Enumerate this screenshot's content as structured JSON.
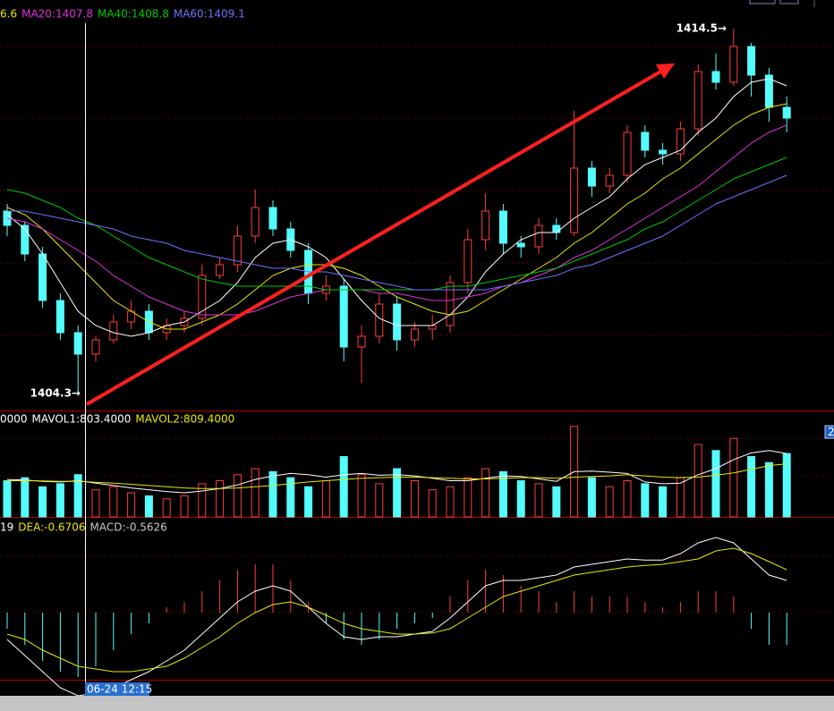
{
  "chart_data": [
    {
      "type": "candlestick",
      "open": [
        1409.4,
        1409.0,
        1408.2,
        1406.9,
        1406.0,
        1405.4,
        1405.8,
        1406.3,
        1406.6,
        1406.0,
        1406.2,
        1406.4,
        1407.6,
        1407.9,
        1408.7,
        1409.5,
        1408.9,
        1408.3,
        1407.1,
        1407.3,
        1405.6,
        1405.9,
        1406.8,
        1405.8,
        1406.1,
        1406.2,
        1407.4,
        1408.6,
        1409.4,
        1408.5,
        1408.4,
        1409.0,
        1408.8,
        1410.6,
        1410.1,
        1410.4,
        1411.6,
        1411.1,
        1411.0,
        1411.7,
        1413.3,
        1413.0,
        1414.0,
        1413.2,
        1412.3
      ],
      "high": [
        1409.6,
        1409.1,
        1408.4,
        1407.1,
        1406.2,
        1405.9,
        1406.5,
        1406.9,
        1406.8,
        1406.4,
        1406.6,
        1407.9,
        1408.1,
        1409.0,
        1410.0,
        1409.7,
        1409.1,
        1408.5,
        1407.6,
        1407.5,
        1406.2,
        1407.1,
        1407.0,
        1406.3,
        1406.5,
        1407.6,
        1408.9,
        1409.9,
        1409.6,
        1408.7,
        1409.2,
        1409.2,
        1412.2,
        1410.8,
        1410.6,
        1411.8,
        1411.8,
        1411.3,
        1411.9,
        1413.5,
        1413.8,
        1414.5,
        1414.1,
        1413.4,
        1412.6
      ],
      "low": [
        1408.7,
        1408.0,
        1406.7,
        1405.8,
        1404.3,
        1405.2,
        1405.7,
        1406.1,
        1405.8,
        1405.8,
        1406.0,
        1406.2,
        1407.5,
        1407.7,
        1408.5,
        1408.7,
        1408.1,
        1406.8,
        1406.9,
        1405.2,
        1404.6,
        1405.7,
        1405.5,
        1405.6,
        1405.8,
        1406.0,
        1407.1,
        1408.3,
        1408.2,
        1408.1,
        1408.2,
        1408.6,
        1408.7,
        1409.8,
        1409.9,
        1410.2,
        1410.9,
        1410.7,
        1410.8,
        1411.5,
        1412.8,
        1412.9,
        1412.6,
        1411.9,
        1411.6
      ],
      "close": [
        1409.0,
        1408.2,
        1406.9,
        1406.0,
        1405.4,
        1405.8,
        1406.3,
        1406.6,
        1406.0,
        1406.2,
        1406.4,
        1407.6,
        1407.9,
        1408.7,
        1409.5,
        1408.9,
        1408.3,
        1407.1,
        1407.3,
        1405.6,
        1405.9,
        1406.8,
        1405.8,
        1406.1,
        1406.2,
        1407.4,
        1408.6,
        1409.4,
        1408.5,
        1408.4,
        1409.0,
        1408.8,
        1410.6,
        1410.1,
        1410.4,
        1411.6,
        1411.1,
        1411.0,
        1411.7,
        1413.3,
        1413.0,
        1414.0,
        1413.2,
        1412.3,
        1412.0
      ],
      "up_color": "#ff3c3c",
      "down_color": "#54fcfc",
      "ylim": [
        1403.8,
        1415.3
      ],
      "series": [
        {
          "color": "#ffffff",
          "values": [
            1409.3,
            1408.9,
            1408.2,
            1407.4,
            1406.6,
            1406.2,
            1406.0,
            1405.9,
            1406.0,
            1406.2,
            1406.3,
            1406.6,
            1406.9,
            1407.4,
            1408.1,
            1408.5,
            1408.6,
            1408.4,
            1408.1,
            1407.5,
            1406.9,
            1406.4,
            1406.2,
            1406.2,
            1406.2,
            1406.5,
            1407.0,
            1407.7,
            1408.2,
            1408.6,
            1408.8,
            1408.8,
            1409.2,
            1409.5,
            1409.8,
            1410.3,
            1410.7,
            1410.9,
            1411.1,
            1411.6,
            1412.0,
            1412.6,
            1413.0,
            1413.1,
            1412.9
          ]
        },
        {
          "name": "6.6",
          "color": "#e8e800",
          "values": [
            1409.5,
            1409.3,
            1408.9,
            1408.4,
            1407.9,
            1407.4,
            1406.9,
            1406.6,
            1406.3,
            1406.1,
            1406.1,
            1406.3,
            1406.5,
            1406.8,
            1407.2,
            1407.6,
            1407.8,
            1407.9,
            1407.9,
            1407.8,
            1407.6,
            1407.3,
            1407.0,
            1406.8,
            1406.6,
            1406.5,
            1406.6,
            1406.9,
            1407.2,
            1407.5,
            1407.8,
            1408.1,
            1408.5,
            1408.8,
            1409.2,
            1409.6,
            1409.9,
            1410.3,
            1410.6,
            1411.0,
            1411.4,
            1411.8,
            1412.1,
            1412.3,
            1412.4
          ]
        },
        {
          "name": "MA20:1407.8",
          "color": "#e030e0",
          "values": [
            1409.2,
            1409.1,
            1408.9,
            1408.6,
            1408.3,
            1408.0,
            1407.6,
            1407.3,
            1407.0,
            1406.8,
            1406.6,
            1406.5,
            1406.5,
            1406.5,
            1406.6,
            1406.8,
            1407.0,
            1407.1,
            1407.2,
            1407.2,
            1407.2,
            1407.1,
            1407.1,
            1407.0,
            1406.9,
            1406.9,
            1407.0,
            1407.1,
            1407.3,
            1407.4,
            1407.6,
            1407.8,
            1408.1,
            1408.3,
            1408.6,
            1408.9,
            1409.2,
            1409.5,
            1409.8,
            1410.1,
            1410.5,
            1410.9,
            1411.3,
            1411.6,
            1411.8
          ]
        },
        {
          "name": "MA40:1408.8",
          "color": "#00c800",
          "values": [
            1410.0,
            1409.9,
            1409.7,
            1409.5,
            1409.2,
            1409.0,
            1408.7,
            1408.4,
            1408.1,
            1407.9,
            1407.7,
            1407.5,
            1407.4,
            1407.3,
            1407.3,
            1407.3,
            1407.3,
            1407.3,
            1407.2,
            1407.2,
            1407.2,
            1407.2,
            1407.2,
            1407.2,
            1407.2,
            1407.3,
            1407.3,
            1407.4,
            1407.5,
            1407.6,
            1407.7,
            1407.8,
            1408.0,
            1408.2,
            1408.4,
            1408.6,
            1408.9,
            1409.1,
            1409.4,
            1409.7,
            1410.0,
            1410.3,
            1410.5,
            1410.7,
            1410.9
          ]
        },
        {
          "name": "MA60:1409.1",
          "color": "#7070ff",
          "values": [
            1409.4,
            1409.4,
            1409.3,
            1409.2,
            1409.1,
            1409.0,
            1408.9,
            1408.7,
            1408.6,
            1408.5,
            1408.3,
            1408.2,
            1408.1,
            1408.0,
            1407.9,
            1407.8,
            1407.8,
            1407.7,
            1407.7,
            1407.6,
            1407.5,
            1407.4,
            1407.3,
            1407.2,
            1407.2,
            1407.2,
            1407.2,
            1407.2,
            1407.3,
            1407.4,
            1407.5,
            1407.6,
            1407.8,
            1407.9,
            1408.1,
            1408.3,
            1408.5,
            1408.7,
            1409.0,
            1409.3,
            1409.6,
            1409.8,
            1410.0,
            1410.2,
            1410.4
          ]
        }
      ],
      "annotations": [
        {
          "value": 1414.5,
          "label": "1414.5→"
        },
        {
          "value": 1404.3,
          "label": "1404.3→"
        }
      ]
    },
    {
      "type": "volume",
      "label": "0000",
      "ylim": [
        0,
        1600
      ],
      "values": [
        600,
        650,
        500,
        550,
        700,
        450,
        500,
        400,
        350,
        300,
        350,
        550,
        600,
        700,
        800,
        750,
        650,
        500,
        600,
        1000,
        700,
        550,
        800,
        600,
        450,
        500,
        650,
        800,
        750,
        600,
        550,
        500,
        1500,
        650,
        500,
        600,
        550,
        500,
        650,
        1200,
        1100,
        1300,
        1000,
        900,
        1050
      ],
      "series": [
        {
          "name": "MAVOL1:803.4000",
          "color": "#ffffff",
          "values": [
            620,
            610,
            590,
            580,
            600,
            560,
            520,
            480,
            450,
            420,
            400,
            430,
            470,
            530,
            620,
            680,
            720,
            700,
            660,
            700,
            720,
            690,
            700,
            680,
            640,
            600,
            600,
            640,
            680,
            670,
            630,
            590,
            750,
            760,
            740,
            720,
            580,
            550,
            560,
            700,
            800,
            950,
            1060,
            1100,
            1050
          ]
        },
        {
          "name": "MAVOL2:809.4000",
          "color": "#e8e800",
          "values": [
            600,
            600,
            595,
            590,
            590,
            575,
            560,
            540,
            520,
            500,
            480,
            470,
            470,
            480,
            500,
            520,
            550,
            580,
            600,
            620,
            640,
            650,
            660,
            660,
            650,
            640,
            630,
            630,
            640,
            650,
            650,
            640,
            660,
            670,
            680,
            700,
            680,
            660,
            650,
            660,
            690,
            730,
            790,
            850,
            880
          ]
        }
      ]
    },
    {
      "type": "macd",
      "ylim": [
        -1.6,
        1.6
      ],
      "series": [
        {
          "name": "19",
          "color": "#ffffff",
          "values": [
            -0.5,
            -0.8,
            -1.1,
            -1.4,
            -1.55,
            -1.5,
            -1.4,
            -1.25,
            -1.1,
            -0.9,
            -0.7,
            -0.4,
            -0.1,
            0.2,
            0.4,
            0.5,
            0.4,
            0.1,
            -0.2,
            -0.45,
            -0.5,
            -0.45,
            -0.45,
            -0.4,
            -0.35,
            -0.1,
            0.2,
            0.5,
            0.6,
            0.6,
            0.65,
            0.7,
            0.85,
            0.9,
            0.95,
            1.0,
            0.98,
            0.98,
            1.1,
            1.3,
            1.4,
            1.3,
            1.0,
            0.7,
            0.6
          ]
        },
        {
          "name": "DEA:-0.6706",
          "color": "#e8e800",
          "values": [
            -0.4,
            -0.5,
            -0.7,
            -0.85,
            -1.0,
            -1.05,
            -1.1,
            -1.1,
            -1.05,
            -1.0,
            -0.85,
            -0.65,
            -0.45,
            -0.2,
            0.0,
            0.15,
            0.2,
            0.1,
            -0.05,
            -0.2,
            -0.3,
            -0.35,
            -0.4,
            -0.4,
            -0.38,
            -0.3,
            -0.1,
            0.1,
            0.3,
            0.4,
            0.5,
            0.6,
            0.7,
            0.75,
            0.8,
            0.85,
            0.88,
            0.9,
            0.95,
            1.0,
            1.15,
            1.2,
            1.1,
            0.95,
            0.8
          ]
        }
      ],
      "histogram": {
        "name": "MACD:-0.5626",
        "color": "#c8c8c8",
        "values": [
          -0.3,
          -0.6,
          -0.9,
          -1.1,
          -1.2,
          -1.0,
          -0.7,
          -0.4,
          -0.2,
          0.1,
          0.2,
          0.4,
          0.6,
          0.8,
          0.9,
          0.9,
          0.6,
          0.2,
          -0.2,
          -0.5,
          -0.6,
          -0.5,
          -0.3,
          -0.2,
          -0.1,
          0.3,
          0.6,
          0.8,
          0.7,
          0.5,
          0.4,
          0.2,
          0.4,
          0.3,
          0.3,
          0.3,
          0.2,
          0.1,
          0.2,
          0.4,
          0.4,
          0.3,
          -0.3,
          -0.6,
          -0.6
        ]
      },
      "up_color": "#ff3c3c",
      "down_color": "#54fcfc"
    }
  ],
  "ui": {
    "cursor_date": "06-24 12:15",
    "scroll_label": "2"
  }
}
